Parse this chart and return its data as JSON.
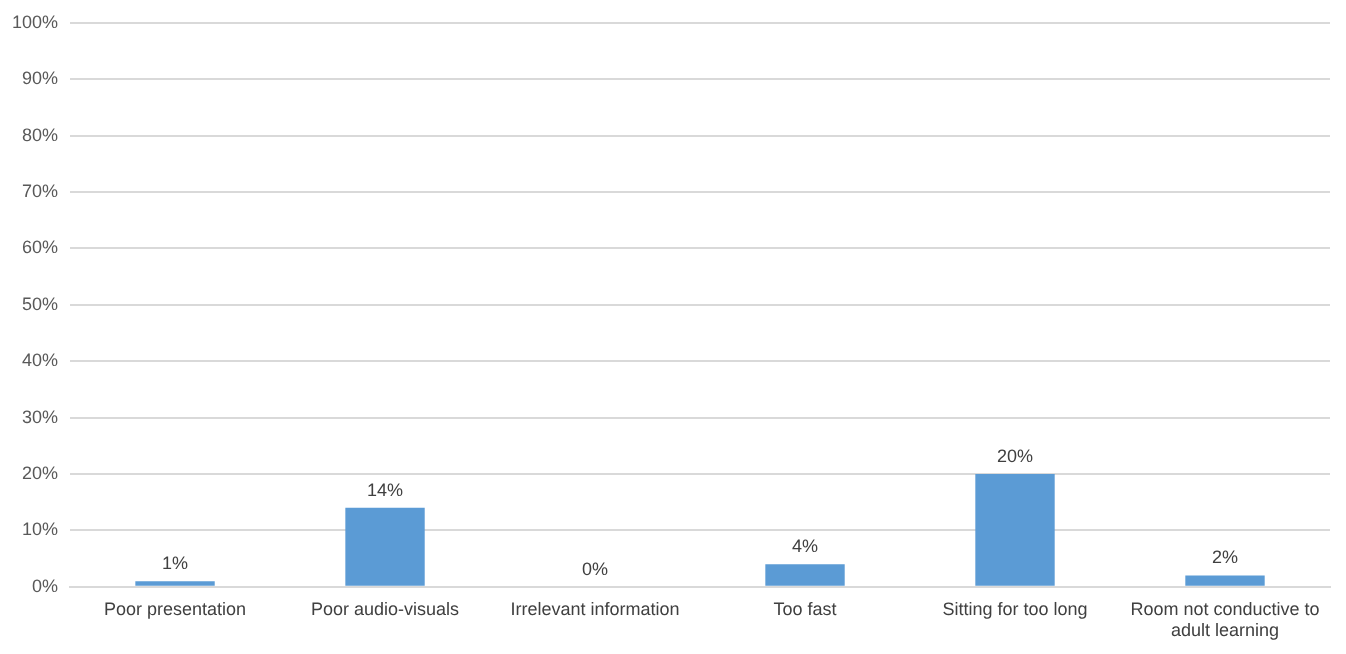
{
  "chart_data": {
    "type": "bar",
    "categories": [
      "Poor presentation",
      "Poor audio-visuals",
      "Irrelevant information",
      "Too fast",
      "Sitting for too long",
      "Room not conductive to adult learning"
    ],
    "values": [
      1,
      14,
      0,
      4,
      20,
      2
    ],
    "color": "#5b9bd5",
    "value_labels": [
      "1%",
      "14%",
      "0%",
      "4%",
      "20%",
      "2%"
    ],
    "ylim": [
      0,
      100
    ],
    "yticks": [
      {
        "value": 0,
        "label": "0%"
      },
      {
        "value": 10,
        "label": "10%"
      },
      {
        "value": 20,
        "label": "20%"
      },
      {
        "value": 30,
        "label": "30%"
      },
      {
        "value": 40,
        "label": "40%"
      },
      {
        "value": 50,
        "label": "50%"
      },
      {
        "value": 60,
        "label": "60%"
      },
      {
        "value": 70,
        "label": "70%"
      },
      {
        "value": 80,
        "label": "80%"
      },
      {
        "value": 90,
        "label": "90%"
      },
      {
        "value": 100,
        "label": "100%"
      }
    ],
    "grid": "y",
    "legend": false
  }
}
